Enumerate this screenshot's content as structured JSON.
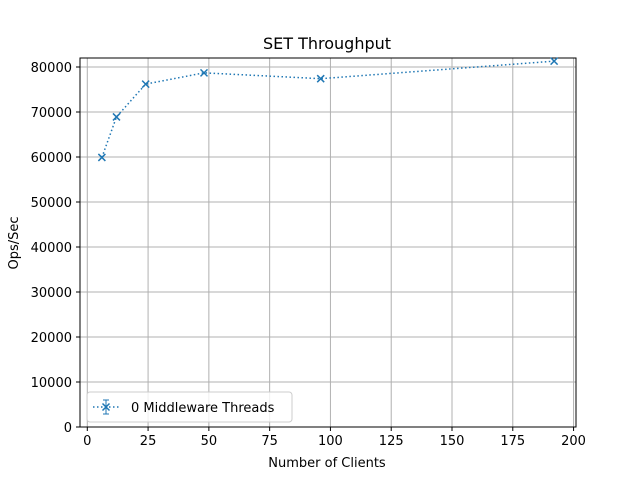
{
  "chart_data": {
    "type": "line",
    "title": "SET Throughput",
    "xlabel": "Number of Clients",
    "ylabel": "Ops/Sec",
    "xlim": [
      -3,
      201
    ],
    "ylim": [
      0,
      82000
    ],
    "xticks": [
      0,
      25,
      50,
      75,
      100,
      125,
      150,
      175,
      200
    ],
    "yticks": [
      0,
      10000,
      20000,
      30000,
      40000,
      50000,
      60000,
      70000,
      80000
    ],
    "grid": true,
    "legend_position": "lower-left",
    "series": [
      {
        "name": "0 Middleware Threads",
        "color": "#1f77b4",
        "line_style": "dotted",
        "marker": "x",
        "x": [
          6,
          12,
          24,
          48,
          96,
          192
        ],
        "y": [
          59900,
          68900,
          76200,
          78700,
          77400,
          81300
        ]
      }
    ]
  }
}
